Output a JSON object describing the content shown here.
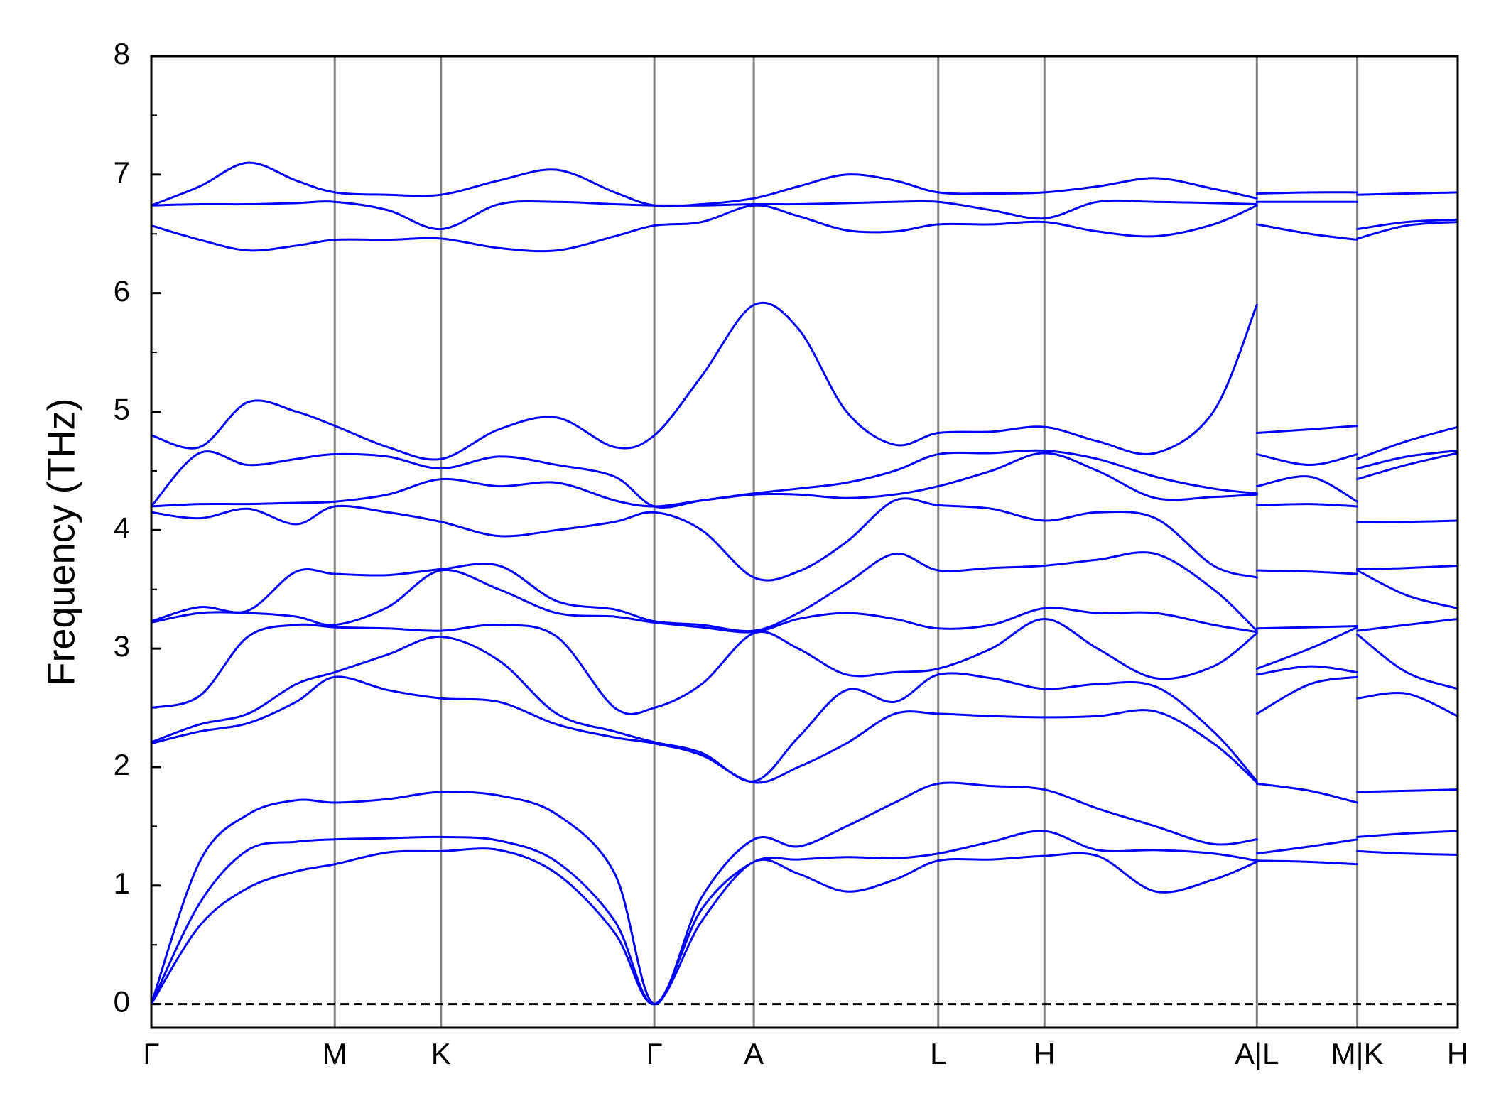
{
  "chart_data": {
    "type": "line",
    "ylabel": "Frequency (THz)",
    "color": "#0000ff",
    "grid_color": "#808080",
    "xgrid": true,
    "hlines": [
      0
    ],
    "xlim": [
      0,
      1.353
    ],
    "ylim": [
      -0.2,
      8
    ],
    "yticks": [
      0,
      1,
      2,
      3,
      4,
      5,
      6,
      7,
      8
    ],
    "yminorticks": [
      0.5,
      1.5,
      2.5,
      3.5,
      4.5,
      5.5,
      6.5,
      7.5
    ],
    "xticks": [
      {
        "value": 0,
        "label": "Γ"
      },
      {
        "value": 0.19,
        "label": "M"
      },
      {
        "value": 0.3,
        "label": "K"
      },
      {
        "value": 0.521,
        "label": "Γ"
      },
      {
        "value": 0.624,
        "label": "A"
      },
      {
        "value": 0.815,
        "label": "L"
      },
      {
        "value": 0.925,
        "label": "H"
      },
      {
        "value": 1.145,
        "label": "A|L"
      },
      {
        "value": 1.249,
        "label": "M|K"
      },
      {
        "value": 1.353,
        "label": "H"
      }
    ],
    "x": [
      0,
      0.05,
      0.1,
      0.15,
      0.19,
      0.245,
      0.3,
      0.36,
      0.42,
      0.48,
      0.521,
      0.57,
      0.624,
      0.67,
      0.72,
      0.77,
      0.815,
      0.87,
      0.925,
      0.98,
      1.04,
      1.1,
      1.145,
      1.145,
      1.145,
      1.2,
      1.249,
      1.249,
      1.249,
      1.3,
      1.353
    ],
    "series": [
      {
        "values": [
          0,
          0.66,
          0.98,
          1.12,
          1.18,
          1.28,
          1.29,
          1.3,
          1.1,
          0.6,
          0,
          0.7,
          1.2,
          1.1,
          0.95,
          1.05,
          1.21,
          1.22,
          1.25,
          1.25,
          0.95,
          1.05,
          1.2,
          null,
          1.21,
          1.2,
          1.18,
          null,
          1.29,
          1.27,
          1.26
        ]
      },
      {
        "values": [
          0,
          0.85,
          1.3,
          1.37,
          1.39,
          1.4,
          1.41,
          1.38,
          1.2,
          0.7,
          0,
          0.8,
          1.2,
          1.22,
          1.24,
          1.23,
          1.27,
          1.37,
          1.46,
          1.3,
          1.3,
          1.27,
          1.21,
          null,
          1.27,
          1.33,
          1.39,
          null,
          1.41,
          1.44,
          1.46
        ]
      },
      {
        "values": [
          0,
          1.2,
          1.6,
          1.72,
          1.7,
          1.73,
          1.79,
          1.76,
          1.6,
          1.1,
          0,
          0.9,
          1.39,
          1.33,
          1.5,
          1.7,
          1.86,
          1.84,
          1.81,
          1.65,
          1.5,
          1.35,
          1.39,
          null,
          1.86,
          1.8,
          1.7,
          null,
          1.79,
          1.8,
          1.81
        ]
      },
      {
        "values": [
          2.2,
          2.3,
          2.37,
          2.55,
          2.76,
          2.65,
          2.58,
          2.55,
          2.36,
          2.25,
          2.2,
          2.1,
          1.87,
          2.0,
          2.2,
          2.45,
          2.45,
          2.43,
          2.42,
          2.43,
          2.47,
          2.2,
          1.87,
          null,
          2.45,
          2.7,
          2.76,
          null,
          2.58,
          2.62,
          2.43
        ]
      },
      {
        "values": [
          2.21,
          2.36,
          2.45,
          2.7,
          2.8,
          2.95,
          3.1,
          2.9,
          2.45,
          2.3,
          2.21,
          2.12,
          1.88,
          2.25,
          2.65,
          2.55,
          2.78,
          2.75,
          2.66,
          2.7,
          2.68,
          2.3,
          1.88,
          null,
          2.78,
          2.85,
          2.8,
          null,
          3.12,
          2.8,
          2.66
        ]
      },
      {
        "values": [
          2.5,
          2.6,
          3.1,
          3.2,
          3.18,
          3.17,
          3.15,
          3.2,
          3.1,
          2.5,
          2.5,
          2.7,
          3.13,
          3.0,
          2.78,
          2.8,
          2.83,
          3.0,
          3.25,
          3.0,
          2.75,
          2.85,
          3.13,
          null,
          2.83,
          3.0,
          3.18,
          null,
          3.15,
          3.2,
          3.25
        ]
      },
      {
        "values": [
          3.22,
          3.3,
          3.3,
          3.27,
          3.2,
          3.35,
          3.66,
          3.5,
          3.3,
          3.27,
          3.22,
          3.18,
          3.14,
          3.25,
          3.3,
          3.25,
          3.17,
          3.2,
          3.34,
          3.3,
          3.3,
          3.2,
          3.14,
          null,
          3.17,
          3.18,
          3.19,
          null,
          3.66,
          3.45,
          3.34
        ]
      },
      {
        "values": [
          3.23,
          3.35,
          3.32,
          3.65,
          3.63,
          3.62,
          3.67,
          3.7,
          3.4,
          3.33,
          3.23,
          3.2,
          3.15,
          3.3,
          3.55,
          3.8,
          3.66,
          3.68,
          3.7,
          3.75,
          3.8,
          3.5,
          3.15,
          null,
          3.66,
          3.65,
          3.63,
          null,
          3.67,
          3.68,
          3.7
        ]
      },
      {
        "values": [
          4.15,
          4.1,
          4.18,
          4.05,
          4.2,
          4.15,
          4.07,
          3.95,
          4.0,
          4.07,
          4.15,
          4.0,
          3.6,
          3.65,
          3.9,
          4.25,
          4.21,
          4.18,
          4.08,
          4.15,
          4.1,
          3.7,
          3.6,
          null,
          4.21,
          4.22,
          4.2,
          null,
          4.07,
          4.07,
          4.08
        ]
      },
      {
        "values": [
          4.2,
          4.22,
          4.22,
          4.23,
          4.24,
          4.3,
          4.43,
          4.37,
          4.4,
          4.25,
          4.2,
          4.25,
          4.3,
          4.3,
          4.27,
          4.3,
          4.37,
          4.5,
          4.65,
          4.5,
          4.27,
          4.28,
          4.3,
          null,
          4.37,
          4.45,
          4.24,
          null,
          4.43,
          4.55,
          4.65
        ]
      },
      {
        "values": [
          4.2,
          4.65,
          4.55,
          4.6,
          4.64,
          4.62,
          4.52,
          4.62,
          4.55,
          4.45,
          4.2,
          4.25,
          4.31,
          4.35,
          4.4,
          4.5,
          4.64,
          4.65,
          4.67,
          4.6,
          4.45,
          4.35,
          4.31,
          null,
          4.64,
          4.55,
          4.64,
          null,
          4.52,
          4.62,
          4.67
        ]
      },
      {
        "values": [
          4.8,
          4.7,
          5.08,
          5.0,
          4.88,
          4.7,
          4.6,
          4.85,
          4.95,
          4.7,
          4.8,
          5.3,
          5.9,
          5.7,
          5.0,
          4.72,
          4.82,
          4.83,
          4.87,
          4.75,
          4.65,
          5.0,
          5.9,
          null,
          4.82,
          4.85,
          4.88,
          null,
          4.6,
          4.75,
          4.87
        ]
      },
      {
        "values": [
          6.57,
          6.45,
          6.36,
          6.4,
          6.45,
          6.45,
          6.46,
          6.38,
          6.36,
          6.48,
          6.57,
          6.6,
          6.74,
          6.65,
          6.53,
          6.52,
          6.58,
          6.58,
          6.6,
          6.52,
          6.48,
          6.58,
          6.74,
          null,
          6.58,
          6.5,
          6.45,
          null,
          6.46,
          6.57,
          6.6
        ]
      },
      {
        "values": [
          6.74,
          6.75,
          6.75,
          6.76,
          6.77,
          6.7,
          6.54,
          6.75,
          6.77,
          6.75,
          6.74,
          6.74,
          6.75,
          6.75,
          6.76,
          6.77,
          6.77,
          6.7,
          6.63,
          6.77,
          6.77,
          6.76,
          6.75,
          null,
          6.77,
          6.77,
          6.77,
          null,
          6.54,
          6.6,
          6.62
        ]
      },
      {
        "values": [
          6.74,
          6.9,
          7.1,
          6.95,
          6.85,
          6.83,
          6.83,
          6.95,
          7.04,
          6.85,
          6.74,
          6.75,
          6.8,
          6.9,
          7.0,
          6.95,
          6.85,
          6.84,
          6.85,
          6.9,
          6.97,
          6.88,
          6.8,
          null,
          6.84,
          6.85,
          6.85,
          null,
          6.83,
          6.84,
          6.85
        ]
      }
    ]
  }
}
